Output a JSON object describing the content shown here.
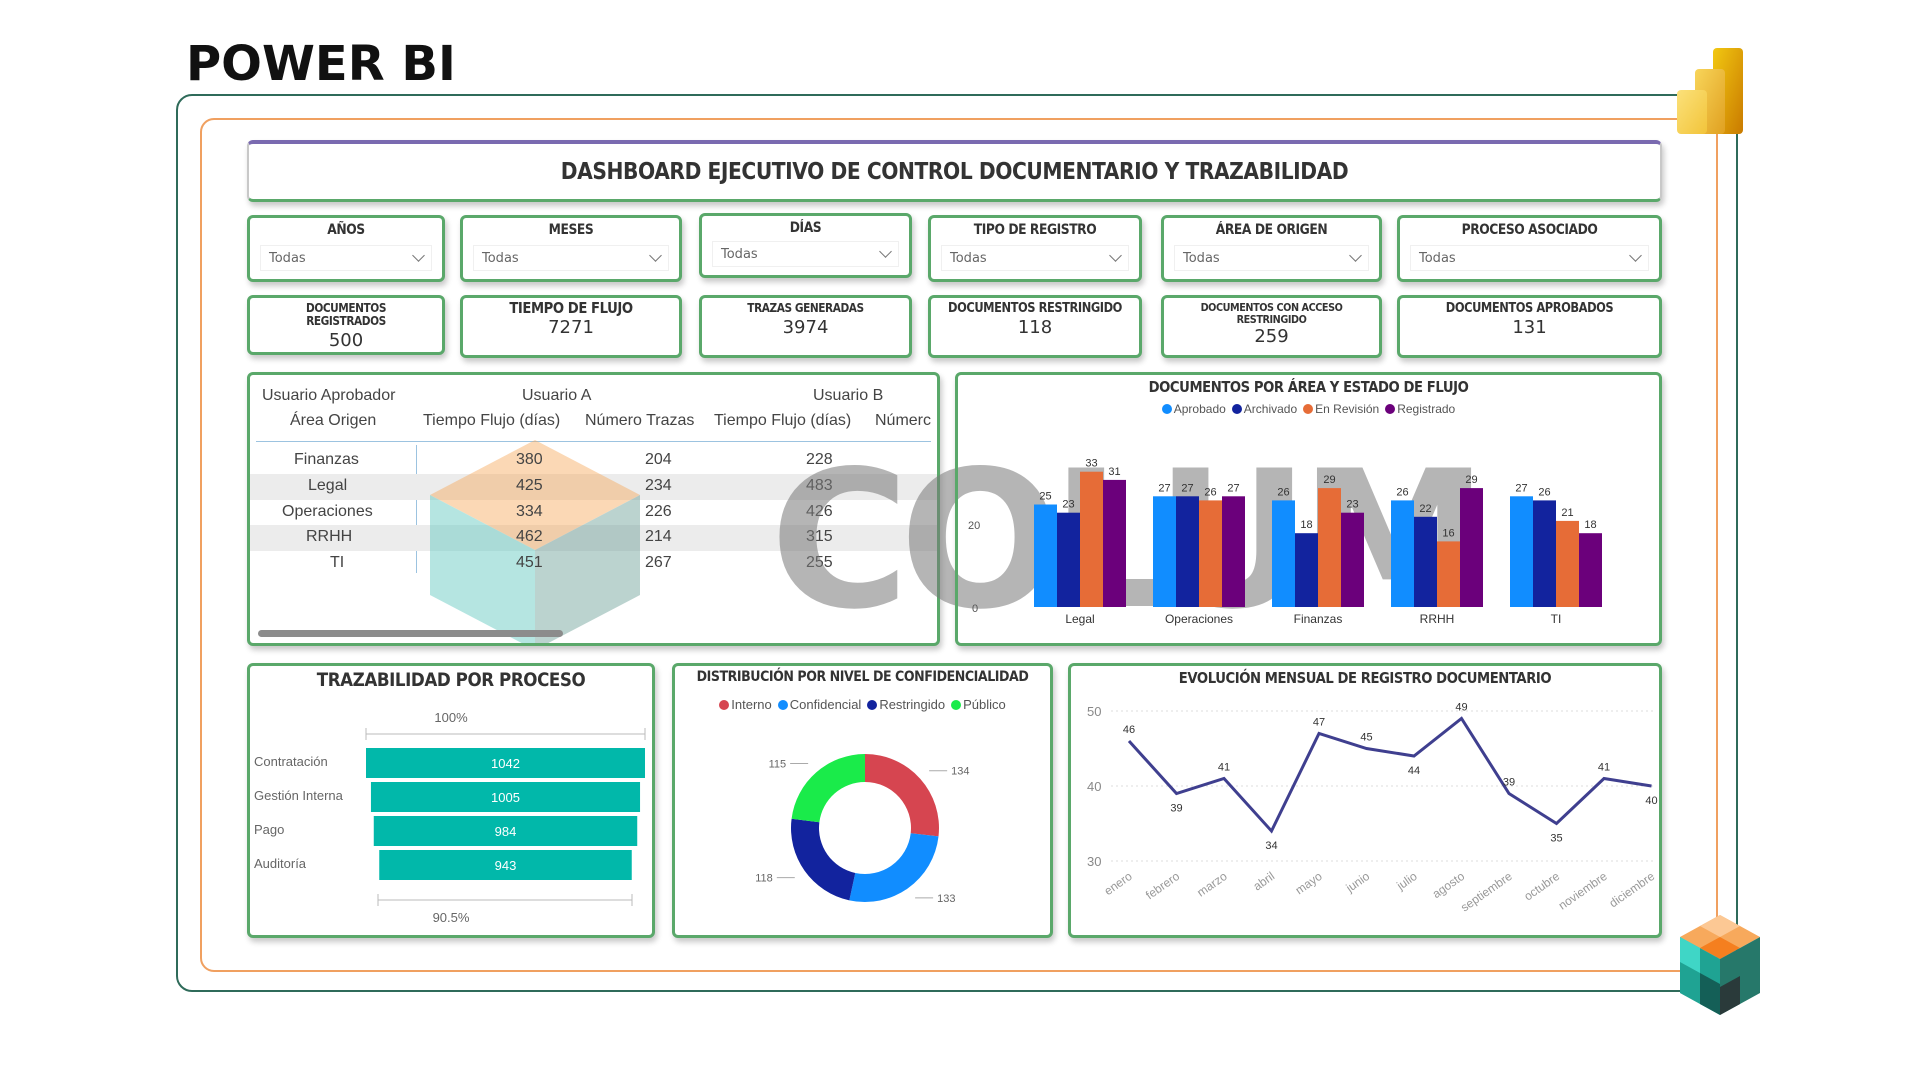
{
  "brand": {
    "title": "POWER BI",
    "logo_icon": "powerbi-logo-icon",
    "corner_icon": "cube-logo-icon",
    "watermark_text": "COLUM"
  },
  "dashboard": {
    "title": "DASHBOARD EJECUTIVO DE CONTROL DOCUMENTARIO Y TRAZABILIDAD"
  },
  "filters": [
    {
      "label": "AÑOS",
      "value": "Todas"
    },
    {
      "label": "MESES",
      "value": "Todas"
    },
    {
      "label": "DÍAS",
      "value": "Todas"
    },
    {
      "label": "TIPO DE REGISTRO",
      "value": "Todas"
    },
    {
      "label": "ÁREA DE ORIGEN",
      "value": "Todas"
    },
    {
      "label": "PROCESO ASOCIADO",
      "value": "Todas"
    }
  ],
  "kpis": [
    {
      "label": "DOCUMENTOS REGISTRADOS",
      "value": "500"
    },
    {
      "label": "TIEMPO DE FLUJO",
      "value": "7271"
    },
    {
      "label": "TRAZAS GENERADAS",
      "value": "3974"
    },
    {
      "label": "DOCUMENTOS RESTRINGIDO",
      "value": "118"
    },
    {
      "label": "DOCUMENTOS CON ACCESO RESTRINGIDO",
      "value": "259"
    },
    {
      "label": "DOCUMENTOS APROBADOS",
      "value": "131"
    }
  ],
  "matrix": {
    "row_header_1": "Usuario Aprobador",
    "row_header_2": "Área Origen",
    "group_a": "Usuario A",
    "group_b": "Usuario B",
    "col_tiempo": "Tiempo Flujo (días)",
    "col_trazas": "Número Trazas",
    "col_trazas_cut": "Númerc",
    "rows": [
      {
        "area": "Finanzas",
        "a_tiempo": "380",
        "a_trazas": "204",
        "b_tiempo": "228"
      },
      {
        "area": "Legal",
        "a_tiempo": "425",
        "a_trazas": "234",
        "b_tiempo": "483"
      },
      {
        "area": "Operaciones",
        "a_tiempo": "334",
        "a_trazas": "226",
        "b_tiempo": "426"
      },
      {
        "area": "RRHH",
        "a_tiempo": "462",
        "a_trazas": "214",
        "b_tiempo": "315"
      },
      {
        "area": "TI",
        "a_tiempo": "451",
        "a_trazas": "267",
        "b_tiempo": "255"
      }
    ]
  },
  "chart_data": [
    {
      "type": "bar",
      "title": "DOCUMENTOS POR ÁREA Y ESTADO DE FLUJO",
      "categories": [
        "Legal",
        "Operaciones",
        "Finanzas",
        "RRHH",
        "TI"
      ],
      "series": [
        {
          "name": "Aprobado",
          "color": "#118DFF",
          "values": [
            25,
            27,
            26,
            26,
            27
          ]
        },
        {
          "name": "Archivado",
          "color": "#12239E",
          "values": [
            23,
            27,
            18,
            22,
            26
          ]
        },
        {
          "name": "En Revisión",
          "color": "#E66C37",
          "values": [
            33,
            26,
            29,
            16,
            21
          ]
        },
        {
          "name": "Registrado",
          "color": "#6B007B",
          "values": [
            31,
            27,
            23,
            29,
            18
          ]
        }
      ],
      "yticks": [
        "0",
        "20"
      ],
      "ylim": [
        0,
        36
      ],
      "legend_position": "top",
      "xlabel": "",
      "ylabel": ""
    },
    {
      "type": "bar",
      "subtype": "funnel",
      "title": "TRAZABILIDAD POR PROCESO",
      "categories": [
        "Contratación",
        "Gestión Interna",
        "Pago",
        "Auditoría"
      ],
      "values": [
        1042,
        1005,
        984,
        943
      ],
      "color": "#01B8AA",
      "top_label": "100%",
      "bottom_label": "90.5%"
    },
    {
      "type": "pie",
      "subtype": "donut",
      "title": "DISTRIBUCIÓN POR NIVEL DE CONFIDENCIALIDAD",
      "categories": [
        "Interno",
        "Confidencial",
        "Restringido",
        "Público"
      ],
      "values": [
        134,
        133,
        118,
        115
      ],
      "colors": [
        "#D64550",
        "#118DFF",
        "#12239E",
        "#1AEB4A"
      ],
      "legend_position": "top"
    },
    {
      "type": "line",
      "title": "EVOLUCIÓN MENSUAL DE REGISTRO DOCUMENTARIO",
      "x": [
        "enero",
        "febrero",
        "marzo",
        "abril",
        "mayo",
        "junio",
        "julio",
        "agosto",
        "septiembre",
        "octubre",
        "noviembre",
        "diciembre"
      ],
      "values": [
        46,
        39,
        41,
        34,
        47,
        45,
        44,
        49,
        39,
        35,
        41,
        40
      ],
      "color": "#3F3F8F",
      "yticks": [
        "30",
        "40",
        "50"
      ],
      "ylim": [
        30,
        50
      ],
      "grid": true
    }
  ]
}
